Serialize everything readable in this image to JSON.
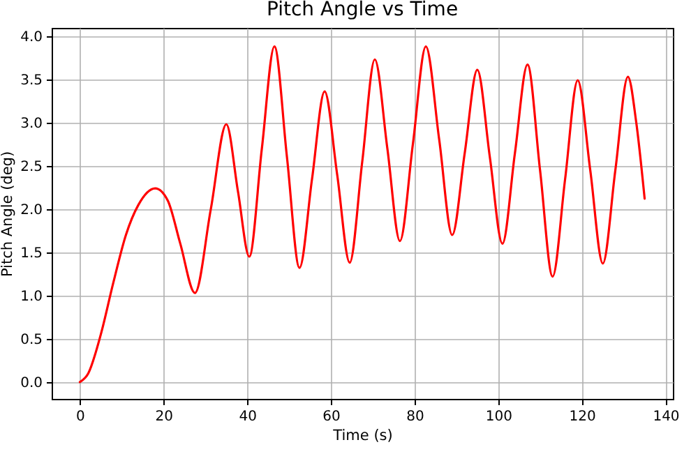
{
  "chart_data": {
    "type": "line",
    "title": "Pitch Angle vs Time",
    "xlabel": "Time (s)",
    "ylabel": "Pitch Angle (deg)",
    "x": [
      0,
      2,
      5,
      8,
      11,
      14,
      18,
      21,
      24,
      27.5,
      31.3,
      35,
      37.8,
      40.5,
      43.5,
      46.5,
      49.5,
      52.5,
      55.5,
      58.5,
      61.5,
      64.5,
      67.5,
      70.5,
      73.5,
      76.5,
      79.6,
      82.7,
      85.9,
      89,
      92,
      95,
      98,
      101,
      104,
      107,
      110,
      113,
      116,
      119,
      122,
      125,
      128,
      131,
      133,
      135
    ],
    "series": [
      {
        "color": "#ff0000",
        "values": [
          0,
          0.1,
          0.55,
          1.15,
          1.7,
          2.05,
          2.24,
          2.1,
          1.6,
          1.03,
          2.0,
          2.98,
          2.2,
          1.45,
          2.7,
          3.88,
          2.6,
          1.32,
          2.35,
          3.36,
          2.4,
          1.38,
          2.55,
          3.73,
          2.7,
          1.63,
          2.75,
          3.88,
          2.8,
          1.7,
          2.65,
          3.61,
          2.6,
          1.6,
          2.65,
          3.67,
          2.45,
          1.22,
          2.35,
          3.49,
          2.45,
          1.37,
          2.45,
          3.53,
          3.0,
          2.12
        ]
      }
    ],
    "xlim": [
      -6.75,
      141.75
    ],
    "xticks": [
      0,
      20,
      40,
      60,
      80,
      100,
      120,
      140
    ],
    "ylim": [
      -0.195,
      4.095
    ],
    "yticks": [
      {
        "value": 0,
        "label": "0.0"
      },
      0.5,
      {
        "value": 1,
        "label": "1.0"
      },
      1.5,
      {
        "value": 2,
        "label": "2.0"
      },
      2.5,
      {
        "value": 3,
        "label": "3.0"
      },
      3.5,
      {
        "value": 4,
        "label": "4.0"
      }
    ],
    "grid": true,
    "line_style": "solid"
  }
}
